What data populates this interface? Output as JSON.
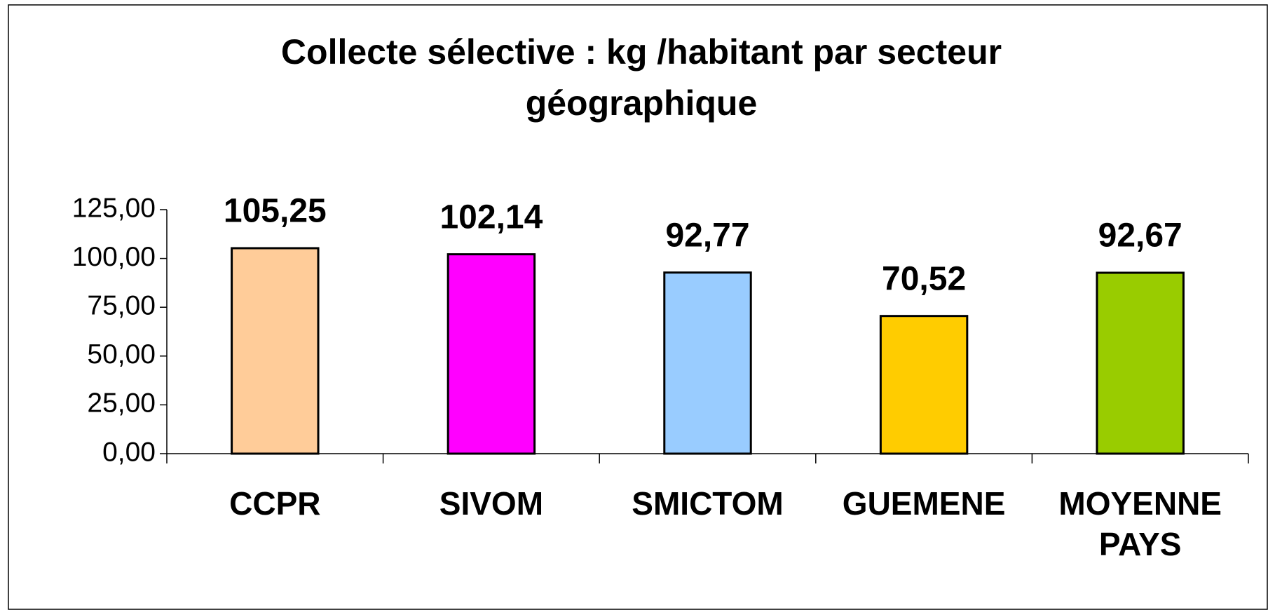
{
  "chart_data": {
    "type": "bar",
    "title": "Collecte sélective  : kg /habitant par secteur géographique",
    "categories": [
      "CCPR",
      "SIVOM",
      "SMICTOM",
      "GUEMENE",
      "MOYENNE PAYS"
    ],
    "values": [
      105.25,
      102.14,
      92.77,
      70.52,
      92.67
    ],
    "value_labels": [
      "105,25",
      "102,14",
      "92,77",
      "70,52",
      "92,67"
    ],
    "colors": [
      "#ffcc99",
      "#ff00ff",
      "#99ccff",
      "#ffcc00",
      "#99cc00"
    ],
    "ylim": [
      0,
      125
    ],
    "yticks": [
      {
        "value": 0,
        "label": "0,00"
      },
      {
        "value": 25,
        "label": "25,00"
      },
      {
        "value": 50,
        "label": "50,00"
      },
      {
        "value": 75,
        "label": "75,00"
      },
      {
        "value": 100,
        "label": "100,00"
      },
      {
        "value": 125,
        "label": "125,00"
      }
    ],
    "grid": false
  }
}
